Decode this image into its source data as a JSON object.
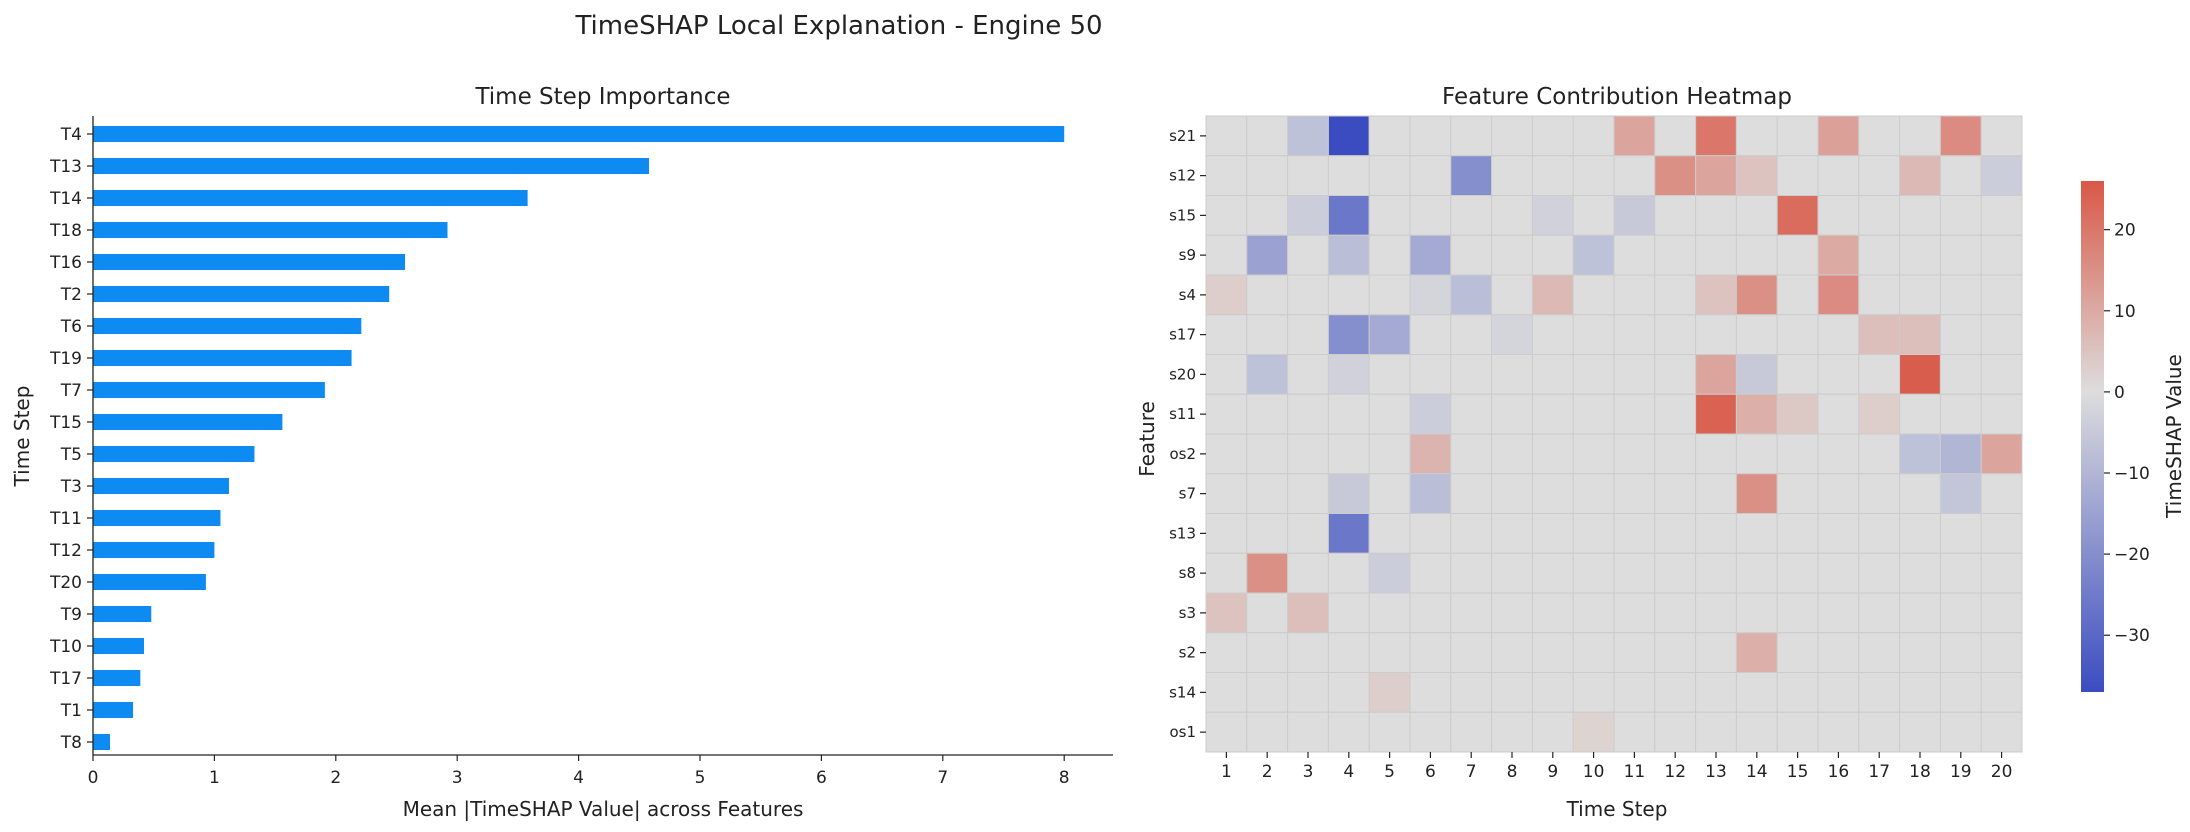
{
  "figure": {
    "title": "TimeSHAP Local Explanation - Engine 50"
  },
  "chart_data": [
    {
      "type": "bar",
      "orientation": "horizontal",
      "title": "Time Step Importance",
      "xlabel": "Mean |TimeSHAP Value| across Features",
      "ylabel": "Time Step",
      "categories": [
        "T4",
        "T13",
        "T14",
        "T18",
        "T16",
        "T2",
        "T6",
        "T19",
        "T7",
        "T15",
        "T5",
        "T3",
        "T11",
        "T12",
        "T20",
        "T9",
        "T10",
        "T17",
        "T1",
        "T8"
      ],
      "values": [
        8.0,
        4.58,
        3.58,
        2.92,
        2.57,
        2.44,
        2.21,
        2.13,
        1.91,
        1.56,
        1.33,
        1.12,
        1.05,
        1.0,
        0.93,
        0.48,
        0.42,
        0.39,
        0.33,
        0.14
      ],
      "xlim": [
        0,
        8.4
      ],
      "xticks": [
        0,
        1,
        2,
        3,
        4,
        5,
        6,
        7,
        8
      ],
      "bar_color": "#0d8bf2",
      "grid": false
    },
    {
      "type": "heatmap",
      "title": "Feature Contribution Heatmap",
      "xlabel": "Time Step",
      "ylabel": "Feature",
      "x": [
        1,
        2,
        3,
        4,
        5,
        6,
        7,
        8,
        9,
        10,
        11,
        12,
        13,
        14,
        15,
        16,
        17,
        18,
        19,
        20
      ],
      "y": [
        "s21",
        "s12",
        "s15",
        "s9",
        "s4",
        "s17",
        "s20",
        "s11",
        "os2",
        "s7",
        "s13",
        "s8",
        "s3",
        "s2",
        "s14",
        "os1"
      ],
      "z": [
        [
          0,
          0,
          -7,
          -37,
          0,
          0,
          0,
          0,
          0,
          0,
          11,
          0,
          20,
          0,
          0,
          12,
          0,
          0,
          16,
          0
        ],
        [
          0,
          0,
          0,
          0,
          0,
          0,
          -20,
          0,
          0,
          0,
          0,
          15,
          11,
          5,
          0,
          0,
          0,
          7,
          0,
          -4
        ],
        [
          0,
          0,
          -4,
          -26,
          0,
          0,
          0,
          0,
          -3,
          0,
          -5,
          0,
          0,
          0,
          22,
          0,
          0,
          0,
          0,
          0
        ],
        [
          0,
          -15,
          0,
          -8,
          0,
          -13,
          0,
          0,
          0,
          -7,
          0,
          0,
          0,
          0,
          0,
          10,
          0,
          0,
          0,
          0
        ],
        [
          3,
          0,
          0,
          0,
          0,
          -2,
          -8,
          0,
          7,
          0,
          0,
          0,
          5,
          15,
          0,
          16,
          0,
          0,
          0,
          0
        ],
        [
          0,
          0,
          0,
          -20,
          -13,
          0,
          0,
          -2,
          0,
          0,
          0,
          0,
          0,
          0,
          0,
          0,
          6,
          6,
          0,
          0
        ],
        [
          0,
          -7,
          0,
          -3,
          0,
          0,
          0,
          0,
          0,
          0,
          0,
          0,
          11,
          -5,
          0,
          0,
          0,
          25,
          0,
          0
        ],
        [
          0,
          0,
          0,
          0,
          0,
          -4,
          0,
          0,
          0,
          0,
          0,
          0,
          24,
          9,
          4,
          0,
          3,
          0,
          0,
          0
        ],
        [
          0,
          0,
          0,
          0,
          0,
          8,
          0,
          0,
          0,
          0,
          0,
          0,
          0,
          0,
          0,
          0,
          0,
          -7,
          -10,
          11
        ],
        [
          0,
          0,
          0,
          -5,
          0,
          -8,
          0,
          0,
          0,
          0,
          0,
          0,
          0,
          15,
          0,
          0,
          0,
          0,
          -6,
          0
        ],
        [
          0,
          0,
          0,
          -26,
          0,
          0,
          0,
          0,
          0,
          0,
          0,
          0,
          0,
          0,
          0,
          0,
          0,
          0,
          0,
          0
        ],
        [
          0,
          15,
          0,
          0,
          -4,
          0,
          0,
          0,
          0,
          0,
          0,
          0,
          0,
          0,
          0,
          0,
          0,
          0,
          0,
          0
        ],
        [
          5,
          0,
          6,
          0,
          0,
          0,
          0,
          0,
          0,
          0,
          0,
          0,
          0,
          0,
          0,
          0,
          0,
          0,
          0,
          0
        ],
        [
          0,
          0,
          0,
          0,
          0,
          0,
          0,
          0,
          0,
          0,
          0,
          0,
          0,
          9,
          0,
          0,
          0,
          0,
          0,
          0
        ],
        [
          0,
          0,
          0,
          0,
          3,
          0,
          0,
          0,
          0,
          0,
          0,
          0,
          0,
          0,
          0,
          0,
          0,
          0,
          0,
          0
        ],
        [
          0,
          0,
          0,
          0,
          0,
          0,
          0,
          0,
          0,
          2,
          0,
          0,
          0,
          0,
          0,
          0,
          0,
          0,
          0,
          0
        ]
      ],
      "colormap": "coolwarm",
      "vmin": -37,
      "vmax": 26,
      "colorbar": {
        "label": "TimeSHAP Value",
        "ticks": [
          20,
          10,
          0,
          -10,
          -20,
          -30
        ]
      },
      "colors": {
        "low": "#3b4cc0",
        "mid": "#dddddd",
        "high": "#d95847",
        "gridline": "#cccccc"
      }
    }
  ]
}
